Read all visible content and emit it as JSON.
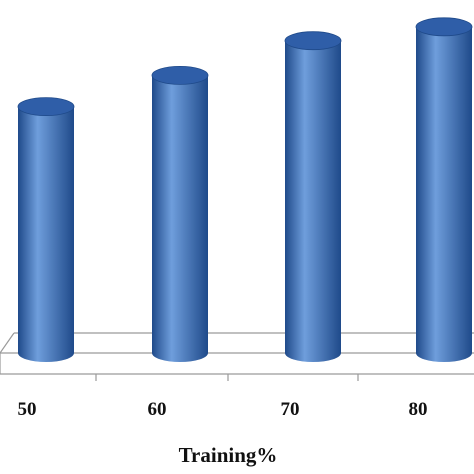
{
  "chart_data": {
    "type": "bar",
    "style": "3d-cylinder",
    "title": "",
    "categories": [
      "50",
      "60",
      "70",
      "80"
    ],
    "values": [
      71,
      80,
      90,
      94
    ],
    "xlabel": "Training%",
    "ylabel": "",
    "ylim": [
      0,
      100
    ],
    "grid": false,
    "legend": "none",
    "colors": {
      "bar": "#3e73bd",
      "bar_dark": "#1f4a8a",
      "bar_light": "#6f9edc",
      "bar_top": "#2f5ea8",
      "axis": "#9a9a9a"
    }
  }
}
